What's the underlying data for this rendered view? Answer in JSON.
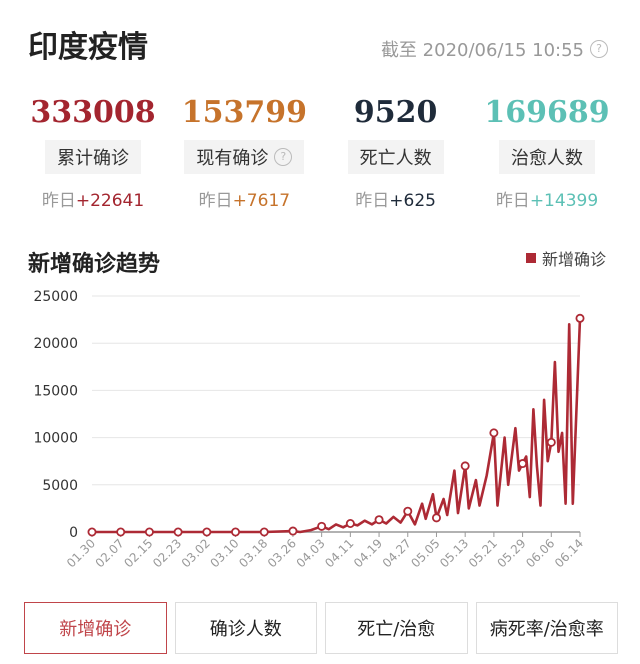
{
  "header": {
    "title": "印度疫情",
    "asof": "截至 2020/06/15 10:55"
  },
  "stats": [
    {
      "value": "333008",
      "label": "累计确诊",
      "help": false,
      "yest_label": "昨日",
      "yest_value": "+22641",
      "color": "#a3252f"
    },
    {
      "value": "153799",
      "label": "现有确诊",
      "help": true,
      "yest_label": "昨日",
      "yest_value": "+7617",
      "color": "#c6732b"
    },
    {
      "value": "9520",
      "label": "死亡人数",
      "help": false,
      "yest_label": "昨日",
      "yest_value": "+625",
      "color": "#1f2b3a"
    },
    {
      "value": "169689",
      "label": "治愈人数",
      "help": false,
      "yest_label": "昨日",
      "yest_value": "+14399",
      "color": "#5cc0b5"
    }
  ],
  "chart_section": {
    "title": "新增确诊趋势",
    "legend": "新增确诊"
  },
  "colors": {
    "series": "#ad2a35",
    "grid": "#e6e6e6",
    "axis": "#999"
  },
  "tabs": [
    {
      "label": "新增确诊",
      "active": true
    },
    {
      "label": "确诊人数",
      "active": false
    },
    {
      "label": "死亡/治愈",
      "active": false
    },
    {
      "label": "病死率/治愈率",
      "active": false
    }
  ],
  "chart_data": {
    "type": "line",
    "title": "新增确诊趋势",
    "series": [
      {
        "name": "新增确诊"
      }
    ],
    "ylim": [
      0,
      25000
    ],
    "yticks": [
      "0",
      "5000",
      "10000",
      "15000",
      "20000",
      "25000"
    ],
    "xticks": [
      "01.30",
      "02.07",
      "02.15",
      "02.23",
      "03.02",
      "03.10",
      "03.18",
      "03.26",
      "04.03",
      "04.11",
      "04.19",
      "04.27",
      "05.05",
      "05.13",
      "05.21",
      "05.29",
      "06.06",
      "06.14"
    ],
    "grid": true,
    "legend_position": "top-right",
    "points": [
      [
        "01.30",
        0
      ],
      [
        "02.07",
        0
      ],
      [
        "02.15",
        0
      ],
      [
        "02.23",
        0
      ],
      [
        "03.02",
        0
      ],
      [
        "03.10",
        0
      ],
      [
        "03.18",
        0
      ],
      [
        "03.26",
        100
      ],
      [
        "03.28",
        0
      ],
      [
        "03.31",
        200
      ],
      [
        "04.03",
        600
      ],
      [
        "04.05",
        300
      ],
      [
        "04.07",
        800
      ],
      [
        "04.09",
        500
      ],
      [
        "04.11",
        900
      ],
      [
        "04.13",
        700
      ],
      [
        "04.15",
        1200
      ],
      [
        "04.17",
        800
      ],
      [
        "04.19",
        1300
      ],
      [
        "04.21",
        900
      ],
      [
        "04.23",
        1600
      ],
      [
        "04.25",
        1000
      ],
      [
        "04.27",
        2200
      ],
      [
        "04.29",
        800
      ],
      [
        "05.01",
        3000
      ],
      [
        "05.02",
        1400
      ],
      [
        "05.04",
        4000
      ],
      [
        "05.05",
        1500
      ],
      [
        "05.07",
        3500
      ],
      [
        "05.08",
        1800
      ],
      [
        "05.10",
        6500
      ],
      [
        "05.11",
        2000
      ],
      [
        "05.13",
        7000
      ],
      [
        "05.14",
        2500
      ],
      [
        "05.16",
        5500
      ],
      [
        "05.17",
        2800
      ],
      [
        "05.19",
        6000
      ],
      [
        "05.21",
        10500
      ],
      [
        "05.22",
        2800
      ],
      [
        "05.24",
        10000
      ],
      [
        "05.25",
        5000
      ],
      [
        "05.27",
        11000
      ],
      [
        "05.28",
        6500
      ],
      [
        "05.30",
        8000
      ],
      [
        "05.31",
        3700
      ],
      [
        "06.01",
        13000
      ],
      [
        "06.02",
        7000
      ],
      [
        "06.03",
        2800
      ],
      [
        "06.04",
        14000
      ],
      [
        "06.05",
        7500
      ],
      [
        "06.06",
        9500
      ],
      [
        "06.07",
        18000
      ],
      [
        "06.08",
        8500
      ],
      [
        "06.09",
        10500
      ],
      [
        "06.10",
        3000
      ],
      [
        "06.11",
        22000
      ],
      [
        "06.12",
        3000
      ],
      [
        "06.14",
        22641
      ]
    ],
    "marker_dates": [
      "01.30",
      "02.07",
      "02.15",
      "02.23",
      "03.02",
      "03.10",
      "03.18",
      "03.26",
      "04.03",
      "04.11",
      "04.19",
      "04.27",
      "05.05",
      "05.13",
      "05.21",
      "05.29",
      "06.06",
      "06.14"
    ]
  }
}
